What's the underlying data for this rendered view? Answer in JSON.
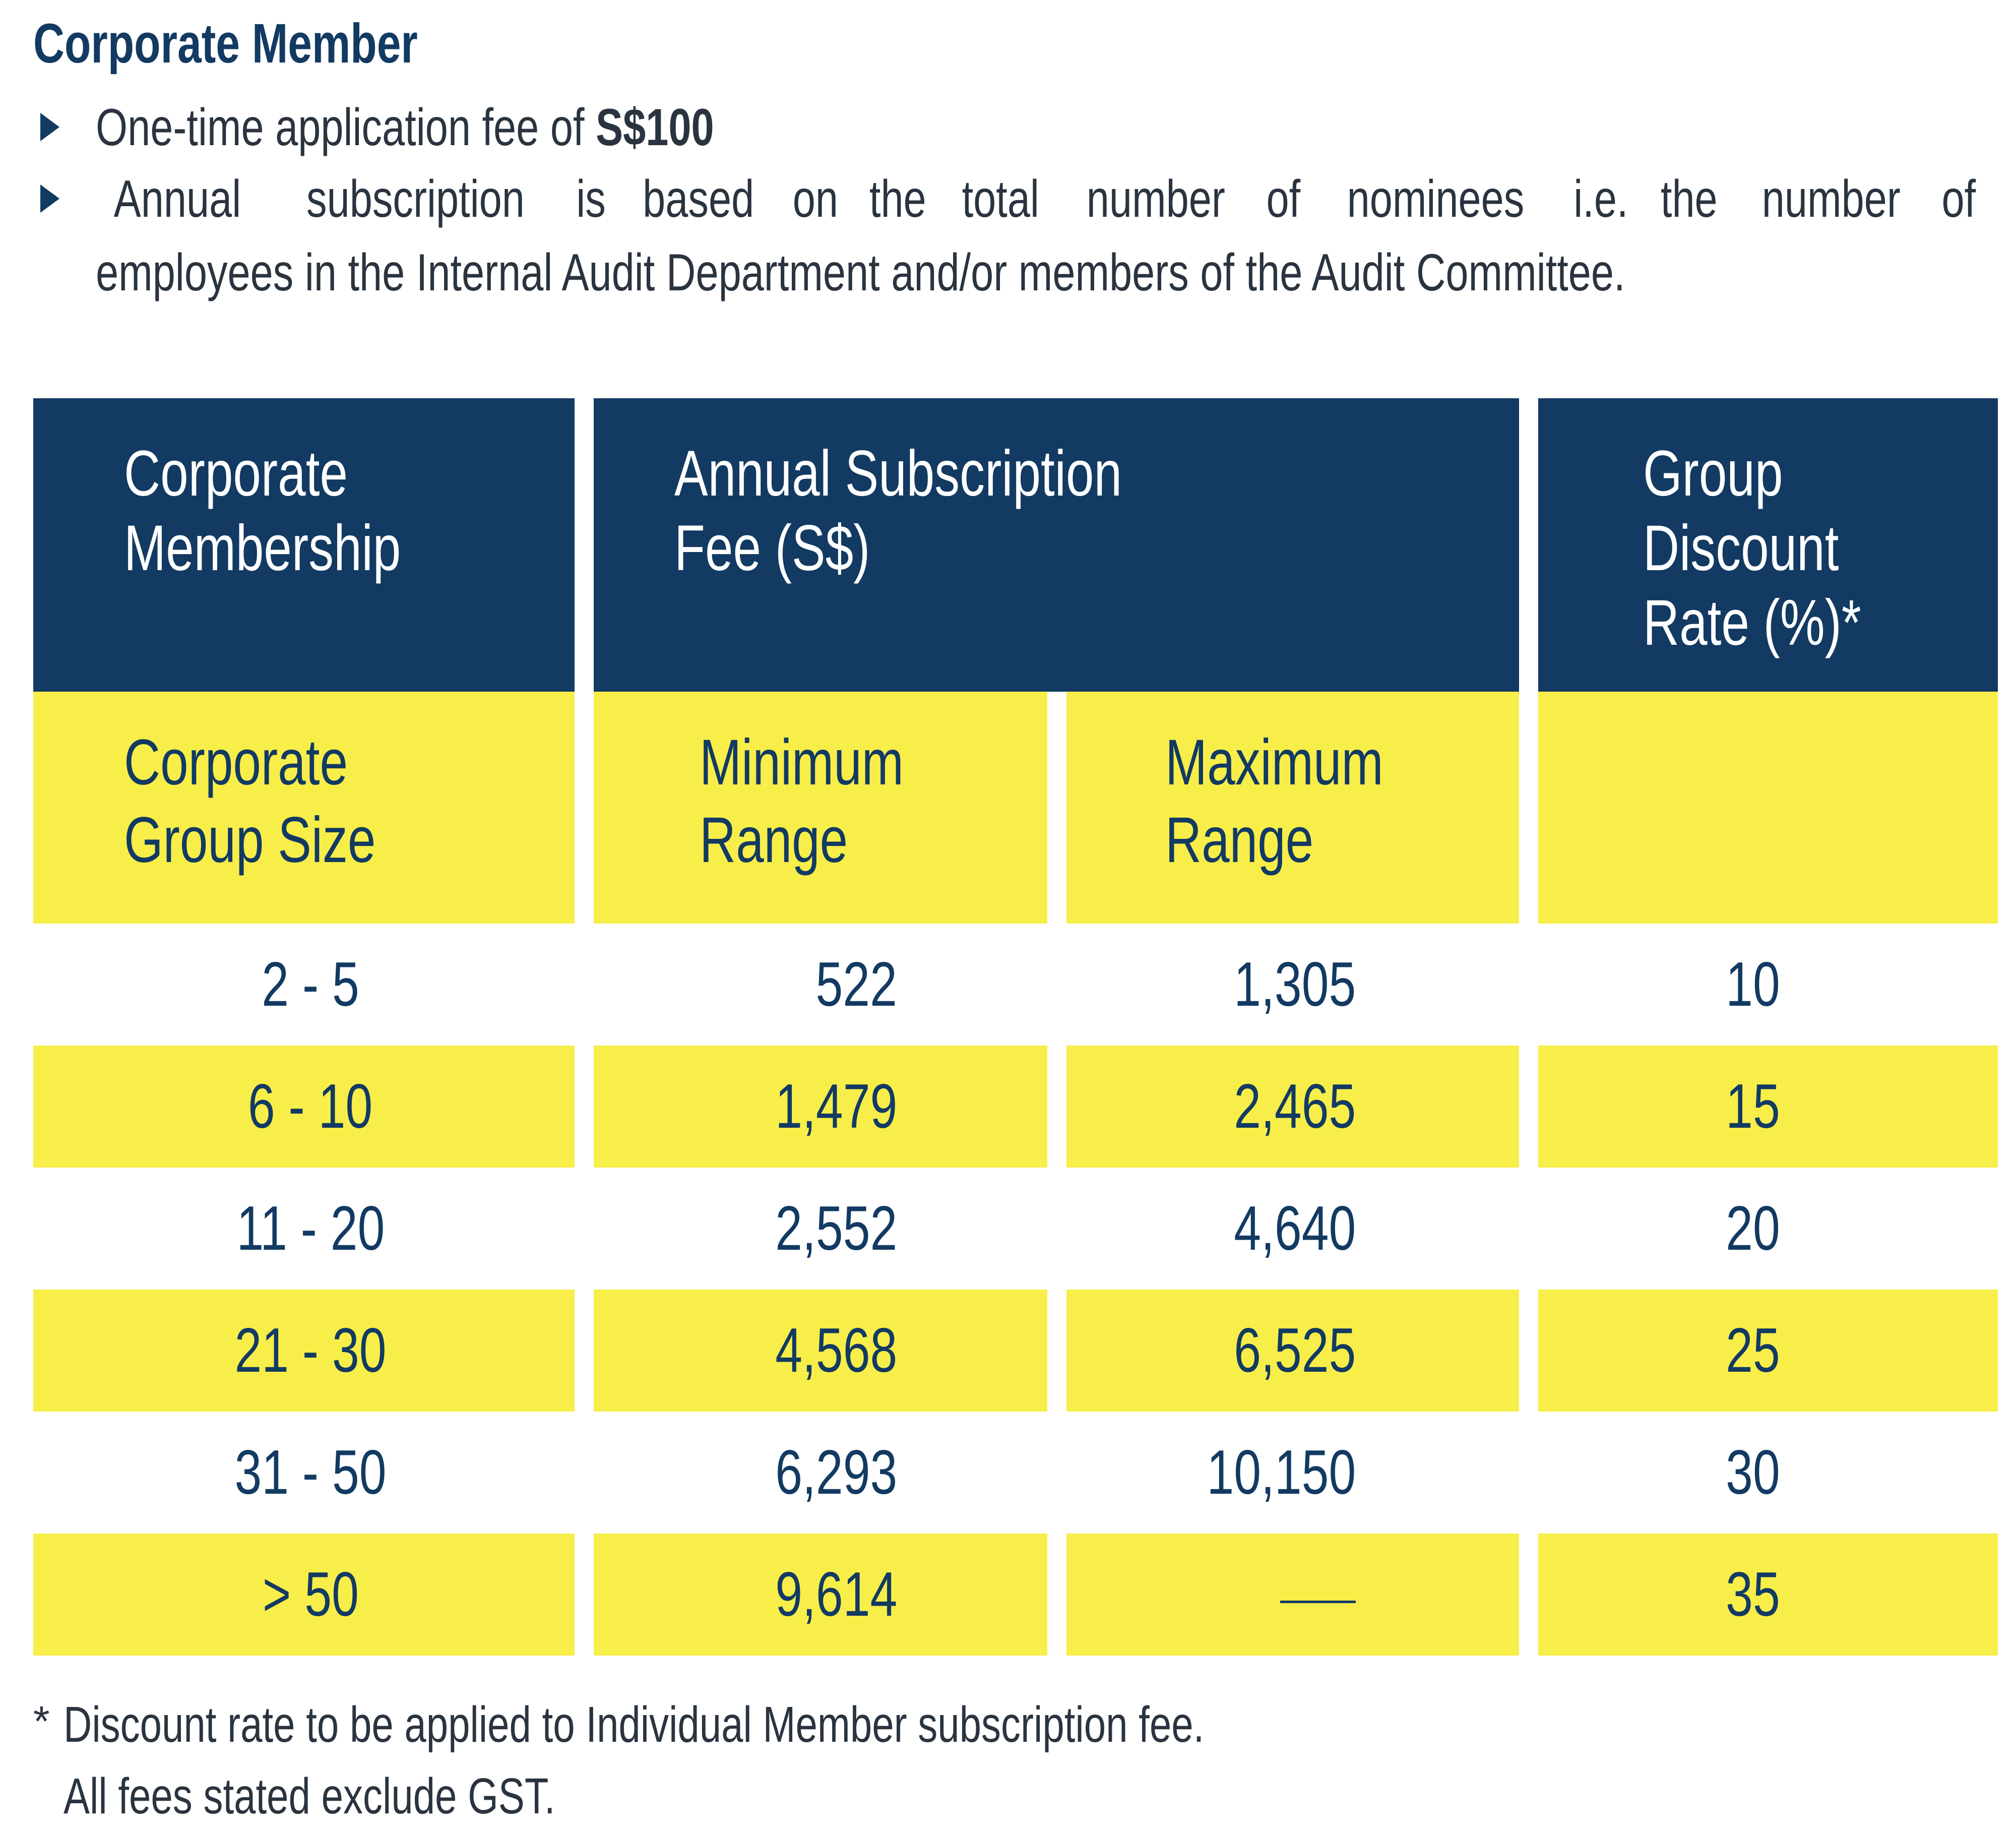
{
  "title": "Corporate Member",
  "bullets": {
    "fee_prefix": "One-time application fee of ",
    "fee_amount": "S$100",
    "subscription_line1_words": [
      "Annual",
      "subscription",
      "is",
      "based",
      "on",
      "the",
      "total",
      "number",
      "of",
      "nominees",
      "i.e.",
      "the",
      "number",
      "of"
    ],
    "subscription_line2": "employees in the Internal Audit Department and/or members of the Audit Committee."
  },
  "table": {
    "header": {
      "membership_line1": "Corporate",
      "membership_line2": "Membership",
      "fee_line1": "Annual Subscription",
      "fee_line2": "Fee (S$)",
      "discount_line1": "Group",
      "discount_line2": "Discount",
      "discount_line3": "Rate (%)*"
    },
    "subheader": {
      "group_line1": "Corporate",
      "group_line2": "Group Size",
      "min_line1": "Minimum",
      "min_line2": "Range",
      "max_line1": "Maximum",
      "max_line2": "Range"
    },
    "rows": [
      {
        "size": "2 - 5",
        "min": "522",
        "max": "1,305",
        "rate": "10"
      },
      {
        "size": "6 - 10",
        "min": "1,479",
        "max": "2,465",
        "rate": "15"
      },
      {
        "size": "11 - 20",
        "min": "2,552",
        "max": "4,640",
        "rate": "20"
      },
      {
        "size": "21 - 30",
        "min": "4,568",
        "max": "6,525",
        "rate": "25"
      },
      {
        "size": "31 - 50",
        "min": "6,293",
        "max": "10,150",
        "rate": "30"
      },
      {
        "size": "> 50",
        "min": "9,614",
        "max": "",
        "rate": "35"
      }
    ]
  },
  "footnote": {
    "marker": "*",
    "line1": "Discount rate to be applied to Individual Member subscription fee.",
    "line2": "All fees stated exclude GST."
  },
  "colors": {
    "navy": "#123a62",
    "yellow": "#f7ee4a",
    "body_text": "#2a3440"
  }
}
